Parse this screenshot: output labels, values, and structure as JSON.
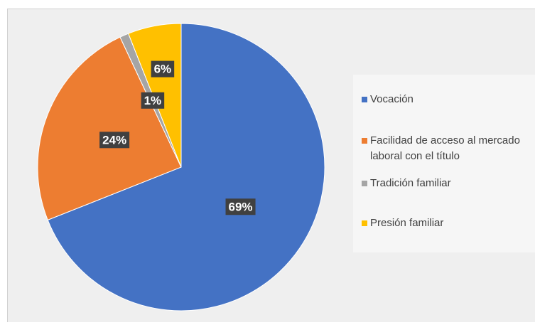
{
  "chart_data": {
    "type": "pie",
    "categories": [
      "Vocación",
      "Facilidad de acceso al mercado laboral con el título",
      "Tradición familiar",
      "Presión familiar"
    ],
    "values": [
      69,
      24,
      1,
      6
    ],
    "value_labels": [
      "69%",
      "24%",
      "1%",
      "6%"
    ],
    "colors": [
      "#4472c4",
      "#ed7d31",
      "#a5a5a5",
      "#ffc000"
    ],
    "legend": "right"
  }
}
